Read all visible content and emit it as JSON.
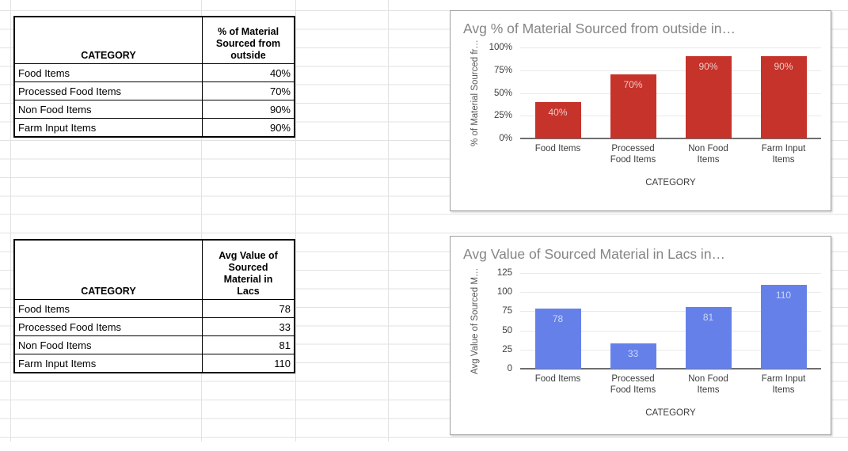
{
  "sheet": {
    "gridline_color": "#e2e2e2"
  },
  "tables": [
    {
      "header_category": "CATEGORY",
      "header_value": "% of Material\nSourced from\noutside",
      "rows": [
        {
          "label": "Food Items",
          "value": "40%"
        },
        {
          "label": "Processed Food Items",
          "value": "70%"
        },
        {
          "label": "Non Food Items",
          "value": "90%"
        },
        {
          "label": "Farm Input Items",
          "value": "90%"
        }
      ]
    },
    {
      "header_category": "CATEGORY",
      "header_value": "Avg Value of\nSourced\nMaterial in\nLacs",
      "rows": [
        {
          "label": "Food Items",
          "value": "78"
        },
        {
          "label": "Processed Food Items",
          "value": "33"
        },
        {
          "label": "Non Food Items",
          "value": "81"
        },
        {
          "label": "Farm Input Items",
          "value": "110"
        }
      ]
    }
  ],
  "chart_data": [
    {
      "type": "bar",
      "title": "Avg % of Material Sourced from outside in…",
      "xlabel": "CATEGORY",
      "ylabel": "% of Material Sourced fr…",
      "categories": [
        "Food Items",
        "Processed Food Items",
        "Non Food Items",
        "Farm Input Items"
      ],
      "categories_display": [
        [
          "Food Items"
        ],
        [
          "Processed",
          "Food Items"
        ],
        [
          "Non Food",
          "Items"
        ],
        [
          "Farm Input",
          "Items"
        ]
      ],
      "values": [
        40,
        70,
        90,
        90
      ],
      "value_labels": [
        "40%",
        "70%",
        "90%",
        "90%"
      ],
      "ylim": [
        0,
        100
      ],
      "yticks": [
        "100%",
        "75%",
        "50%",
        "25%",
        "0%"
      ],
      "bar_color": "#c5332b",
      "value_label_color": "#f1c9c5",
      "grid": true,
      "legend": "none"
    },
    {
      "type": "bar",
      "title": "Avg Value of Sourced Material in Lacs in…",
      "xlabel": "CATEGORY",
      "ylabel": "Avg Value of Sourced M…",
      "categories": [
        "Food Items",
        "Processed Food Items",
        "Non Food Items",
        "Farm Input Items"
      ],
      "categories_display": [
        [
          "Food Items"
        ],
        [
          "Processed",
          "Food Items"
        ],
        [
          "Non Food",
          "Items"
        ],
        [
          "Farm Input",
          "Items"
        ]
      ],
      "values": [
        78,
        33,
        81,
        110
      ],
      "value_labels": [
        "78",
        "33",
        "81",
        "110"
      ],
      "ylim": [
        0,
        125
      ],
      "yticks": [
        "125",
        "100",
        "75",
        "50",
        "25",
        "0"
      ],
      "bar_color": "#6581e9",
      "value_label_color": "#ccd7f8",
      "grid": true,
      "legend": "none"
    }
  ]
}
